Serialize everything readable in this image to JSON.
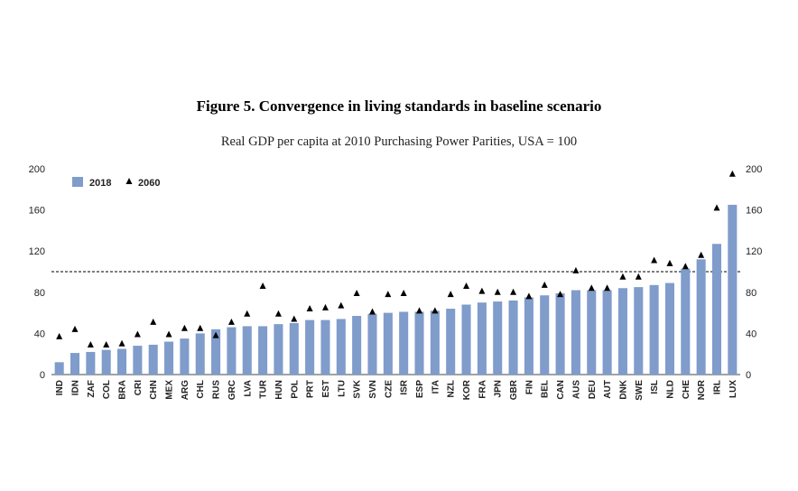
{
  "page": {
    "title": "Figure 5. Convergence in living standards in baseline scenario",
    "subtitle": "Real GDP per capita at 2010 Purchasing Power Parities, USA = 100"
  },
  "chart_data": {
    "type": "bar",
    "categories": [
      "IND",
      "IDN",
      "ZAF",
      "COL",
      "BRA",
      "CRI",
      "CHN",
      "MEX",
      "ARG",
      "CHL",
      "RUS",
      "GRC",
      "LVA",
      "TUR",
      "HUN",
      "POL",
      "PRT",
      "EST",
      "LTU",
      "SVK",
      "SVN",
      "CZE",
      "ISR",
      "ESP",
      "ITA",
      "NZL",
      "KOR",
      "FRA",
      "JPN",
      "GBR",
      "FIN",
      "BEL",
      "CAN",
      "AUS",
      "DEU",
      "AUT",
      "DNK",
      "SWE",
      "ISL",
      "NLD",
      "CHE",
      "NOR",
      "IRL",
      "LUX"
    ],
    "series": [
      {
        "name": "2018",
        "kind": "bar",
        "color": "#7f9ccb",
        "values": [
          12,
          21,
          22,
          24,
          25,
          28,
          29,
          32,
          35,
          40,
          44,
          46,
          47,
          47,
          49,
          50,
          53,
          53,
          54,
          57,
          59,
          60,
          61,
          61,
          62,
          64,
          68,
          70,
          71,
          72,
          75,
          77,
          79,
          82,
          82,
          82,
          84,
          85,
          87,
          89,
          103,
          112,
          127,
          165
        ]
      },
      {
        "name": "2060",
        "kind": "marker",
        "marker": "triangle",
        "color": "#000000",
        "values": [
          37,
          44,
          29,
          29,
          30,
          39,
          51,
          39,
          45,
          45,
          38,
          51,
          59,
          86,
          59,
          54,
          64,
          65,
          67,
          79,
          61,
          78,
          79,
          62,
          62,
          78,
          86,
          81,
          80,
          80,
          76,
          87,
          78,
          101,
          84,
          84,
          95,
          95,
          111,
          108,
          105,
          116,
          162,
          195
        ]
      }
    ],
    "ylim": [
      0,
      200
    ],
    "yticks": [
      0,
      40,
      80,
      120,
      160,
      200
    ],
    "reference_line": {
      "value": 100,
      "style": "dashed"
    },
    "legend_position": "top-left",
    "grid": false
  }
}
